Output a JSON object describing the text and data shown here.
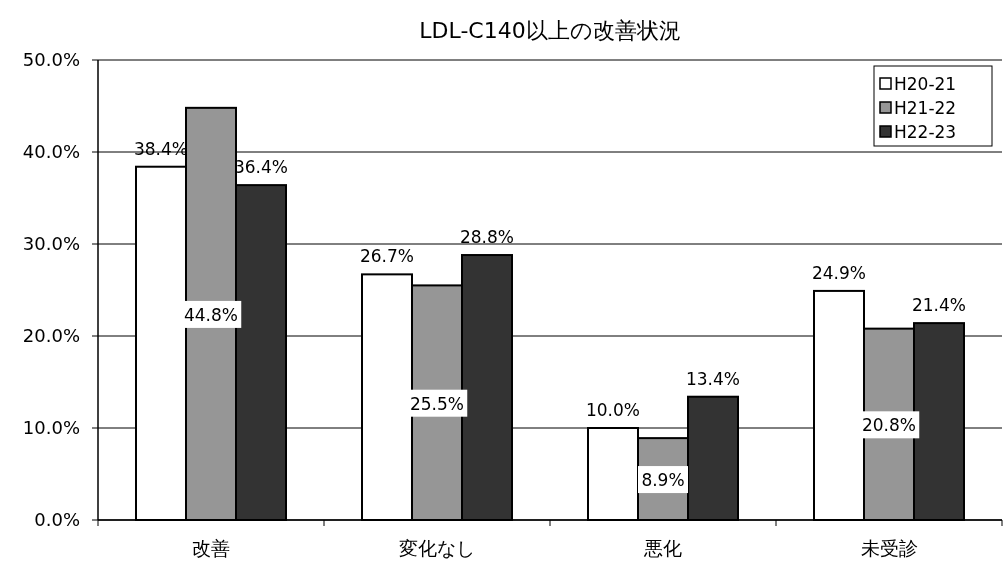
{
  "chart_data": {
    "type": "bar",
    "title": "LDL-C140以上の改善状況",
    "categories": [
      "改善",
      "変化なし",
      "悪化",
      "未受診"
    ],
    "series": [
      {
        "name": "H20-21",
        "color": "#ffffff",
        "values": [
          38.4,
          26.7,
          10.0,
          24.9
        ],
        "value_labels": [
          "38.4%",
          "26.7%",
          "10.0%",
          "24.9%"
        ]
      },
      {
        "name": "H21-22",
        "color": "#969696",
        "values": [
          44.8,
          25.5,
          8.9,
          20.8
        ],
        "value_labels": [
          "44.8%",
          "25.5%",
          "8.9%",
          "20.8%"
        ]
      },
      {
        "name": "H22-23",
        "color": "#333333",
        "values": [
          36.4,
          28.8,
          13.4,
          21.4
        ],
        "value_labels": [
          "36.4%",
          "28.8%",
          "13.4%",
          "21.4%"
        ]
      }
    ],
    "ylim": [
      0,
      50
    ],
    "yticks": [
      {
        "value": 0,
        "label": "0.0%"
      },
      {
        "value": 10,
        "label": "10.0%"
      },
      {
        "value": 20,
        "label": "20.0%"
      },
      {
        "value": 30,
        "label": "30.0%"
      },
      {
        "value": 40,
        "label": "40.0%"
      },
      {
        "value": 50,
        "label": "50.0%"
      }
    ],
    "grid": "y",
    "legend": "top right"
  }
}
